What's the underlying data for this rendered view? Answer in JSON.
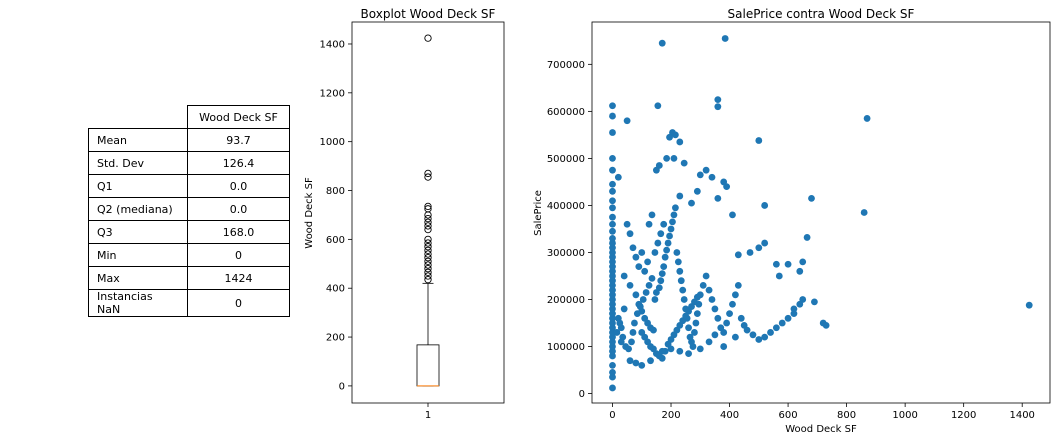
{
  "table": {
    "column_header": "Wood Deck SF",
    "rows": [
      {
        "label": "Mean",
        "value": "93.7"
      },
      {
        "label": "Std. Dev",
        "value": "126.4"
      },
      {
        "label": "Q1",
        "value": "0.0"
      },
      {
        "label": "Q2 (mediana)",
        "value": "0.0"
      },
      {
        "label": "Q3",
        "value": "168.0"
      },
      {
        "label": "Min",
        "value": "0"
      },
      {
        "label": "Max",
        "value": "1424"
      },
      {
        "label": "Instancias NaN",
        "value": "0"
      }
    ]
  },
  "chart_data": [
    {
      "type": "box",
      "title": "Boxplot Wood Deck SF",
      "xlabel": "",
      "ylabel": "Wood Deck SF",
      "categories": [
        "1"
      ],
      "ylim": [
        -70,
        1490
      ],
      "yticks": [
        0,
        200,
        400,
        600,
        800,
        1000,
        1200,
        1400
      ],
      "box": {
        "q1": 0,
        "median": 0,
        "q3": 168,
        "whisker_low": 0,
        "whisker_high": 420
      },
      "outliers": [
        1424,
        870,
        855,
        735,
        725,
        700,
        685,
        670,
        655,
        640,
        600,
        585,
        570,
        555,
        540,
        525,
        510,
        495,
        480,
        465,
        450,
        435
      ],
      "colors": {
        "box": "#000000",
        "median": "#ff7f0e"
      }
    },
    {
      "type": "scatter",
      "title": "SalePrice contra Wood Deck SF",
      "xlabel": "Wood Deck SF",
      "ylabel": "SalePrice",
      "xlim": [
        -70,
        1495
      ],
      "ylim": [
        -20000,
        790000
      ],
      "xticks": [
        0,
        200,
        400,
        600,
        800,
        1000,
        1200,
        1400
      ],
      "yticks": [
        0,
        100000,
        200000,
        300000,
        400000,
        500000,
        600000,
        700000
      ],
      "color": "#1f77b4",
      "points": [
        [
          0,
          12000
        ],
        [
          0,
          35000
        ],
        [
          0,
          45000
        ],
        [
          0,
          60000
        ],
        [
          0,
          80000
        ],
        [
          0,
          90000
        ],
        [
          0,
          100000
        ],
        [
          0,
          110000
        ],
        [
          0,
          120000
        ],
        [
          0,
          130000
        ],
        [
          0,
          140000
        ],
        [
          0,
          150000
        ],
        [
          0,
          160000
        ],
        [
          0,
          170000
        ],
        [
          0,
          180000
        ],
        [
          0,
          190000
        ],
        [
          0,
          200000
        ],
        [
          0,
          210000
        ],
        [
          0,
          220000
        ],
        [
          0,
          230000
        ],
        [
          0,
          240000
        ],
        [
          0,
          250000
        ],
        [
          0,
          260000
        ],
        [
          0,
          270000
        ],
        [
          0,
          280000
        ],
        [
          0,
          290000
        ],
        [
          0,
          300000
        ],
        [
          0,
          310000
        ],
        [
          0,
          320000
        ],
        [
          0,
          330000
        ],
        [
          0,
          345000
        ],
        [
          0,
          360000
        ],
        [
          0,
          375000
        ],
        [
          0,
          395000
        ],
        [
          0,
          410000
        ],
        [
          0,
          430000
        ],
        [
          0,
          445000
        ],
        [
          0,
          475000
        ],
        [
          0,
          500000
        ],
        [
          0,
          555000
        ],
        [
          0,
          590000
        ],
        [
          0,
          612000
        ],
        [
          20,
          460000
        ],
        [
          50,
          580000
        ],
        [
          155,
          612000
        ],
        [
          170,
          745000
        ],
        [
          385,
          755000
        ],
        [
          360,
          625000
        ],
        [
          360,
          610000
        ],
        [
          500,
          538000
        ],
        [
          205,
          555000
        ],
        [
          215,
          550000
        ],
        [
          195,
          545000
        ],
        [
          230,
          535000
        ],
        [
          210,
          500000
        ],
        [
          185,
          500000
        ],
        [
          160,
          485000
        ],
        [
          150,
          475000
        ],
        [
          245,
          490000
        ],
        [
          300,
          465000
        ],
        [
          320,
          475000
        ],
        [
          340,
          460000
        ],
        [
          380,
          450000
        ],
        [
          390,
          440000
        ],
        [
          290,
          430000
        ],
        [
          230,
          420000
        ],
        [
          270,
          405000
        ],
        [
          360,
          415000
        ],
        [
          410,
          380000
        ],
        [
          520,
          400000
        ],
        [
          680,
          415000
        ],
        [
          665,
          332000
        ],
        [
          860,
          385000
        ],
        [
          870,
          585000
        ],
        [
          1424,
          188000
        ],
        [
          720,
          150000
        ],
        [
          730,
          145000
        ],
        [
          650,
          200000
        ],
        [
          690,
          195000
        ],
        [
          640,
          190000
        ],
        [
          620,
          180000
        ],
        [
          600,
          275000
        ],
        [
          640,
          260000
        ],
        [
          650,
          280000
        ],
        [
          560,
          275000
        ],
        [
          570,
          250000
        ],
        [
          520,
          320000
        ],
        [
          500,
          310000
        ],
        [
          470,
          300000
        ],
        [
          430,
          295000
        ],
        [
          40,
          250000
        ],
        [
          60,
          230000
        ],
        [
          80,
          210000
        ],
        [
          90,
          190000
        ],
        [
          100,
          175000
        ],
        [
          110,
          160000
        ],
        [
          120,
          150000
        ],
        [
          130,
          140000
        ],
        [
          140,
          135000
        ],
        [
          145,
          200000
        ],
        [
          150,
          215000
        ],
        [
          160,
          225000
        ],
        [
          165,
          240000
        ],
        [
          170,
          255000
        ],
        [
          175,
          270000
        ],
        [
          180,
          290000
        ],
        [
          185,
          305000
        ],
        [
          190,
          320000
        ],
        [
          195,
          335000
        ],
        [
          200,
          350000
        ],
        [
          205,
          365000
        ],
        [
          210,
          380000
        ],
        [
          215,
          395000
        ],
        [
          220,
          300000
        ],
        [
          225,
          280000
        ],
        [
          230,
          260000
        ],
        [
          235,
          240000
        ],
        [
          240,
          220000
        ],
        [
          245,
          200000
        ],
        [
          250,
          180000
        ],
        [
          255,
          160000
        ],
        [
          260,
          140000
        ],
        [
          265,
          120000
        ],
        [
          270,
          110000
        ],
        [
          275,
          100000
        ],
        [
          280,
          130000
        ],
        [
          285,
          150000
        ],
        [
          290,
          170000
        ],
        [
          295,
          190000
        ],
        [
          300,
          210000
        ],
        [
          310,
          230000
        ],
        [
          320,
          250000
        ],
        [
          330,
          220000
        ],
        [
          340,
          200000
        ],
        [
          350,
          180000
        ],
        [
          360,
          160000
        ],
        [
          370,
          140000
        ],
        [
          380,
          130000
        ],
        [
          390,
          150000
        ],
        [
          400,
          170000
        ],
        [
          410,
          190000
        ],
        [
          420,
          210000
        ],
        [
          430,
          230000
        ],
        [
          440,
          160000
        ],
        [
          450,
          145000
        ],
        [
          460,
          135000
        ],
        [
          480,
          125000
        ],
        [
          500,
          115000
        ],
        [
          520,
          120000
        ],
        [
          540,
          130000
        ],
        [
          560,
          140000
        ],
        [
          580,
          150000
        ],
        [
          600,
          160000
        ],
        [
          620,
          170000
        ],
        [
          30,
          140000
        ],
        [
          35,
          120000
        ],
        [
          45,
          100000
        ],
        [
          55,
          95000
        ],
        [
          65,
          110000
        ],
        [
          70,
          130000
        ],
        [
          75,
          150000
        ],
        [
          85,
          170000
        ],
        [
          95,
          185000
        ],
        [
          105,
          200000
        ],
        [
          115,
          215000
        ],
        [
          125,
          230000
        ],
        [
          135,
          245000
        ],
        [
          100,
          130000
        ],
        [
          110,
          120000
        ],
        [
          120,
          110000
        ],
        [
          130,
          100000
        ],
        [
          140,
          95000
        ],
        [
          150,
          85000
        ],
        [
          160,
          80000
        ],
        [
          170,
          75000
        ],
        [
          180,
          90000
        ],
        [
          190,
          105000
        ],
        [
          200,
          115000
        ],
        [
          210,
          125000
        ],
        [
          220,
          135000
        ],
        [
          230,
          145000
        ],
        [
          240,
          155000
        ],
        [
          250,
          165000
        ],
        [
          260,
          175000
        ],
        [
          270,
          185000
        ],
        [
          280,
          195000
        ],
        [
          290,
          205000
        ],
        [
          145,
          300000
        ],
        [
          155,
          320000
        ],
        [
          165,
          340000
        ],
        [
          175,
          360000
        ],
        [
          125,
          360000
        ],
        [
          135,
          380000
        ],
        [
          120,
          280000
        ],
        [
          110,
          260000
        ],
        [
          100,
          300000
        ],
        [
          90,
          270000
        ],
        [
          80,
          290000
        ],
        [
          70,
          310000
        ],
        [
          60,
          340000
        ],
        [
          50,
          360000
        ],
        [
          40,
          180000
        ],
        [
          20,
          160000
        ],
        [
          25,
          150000
        ],
        [
          15,
          130000
        ],
        [
          30,
          110000
        ],
        [
          60,
          70000
        ],
        [
          80,
          65000
        ],
        [
          100,
          60000
        ],
        [
          130,
          70000
        ],
        [
          170,
          90000
        ],
        [
          200,
          95000
        ],
        [
          230,
          90000
        ],
        [
          260,
          85000
        ],
        [
          300,
          95000
        ],
        [
          330,
          110000
        ],
        [
          350,
          125000
        ],
        [
          380,
          100000
        ],
        [
          420,
          120000
        ]
      ]
    }
  ]
}
